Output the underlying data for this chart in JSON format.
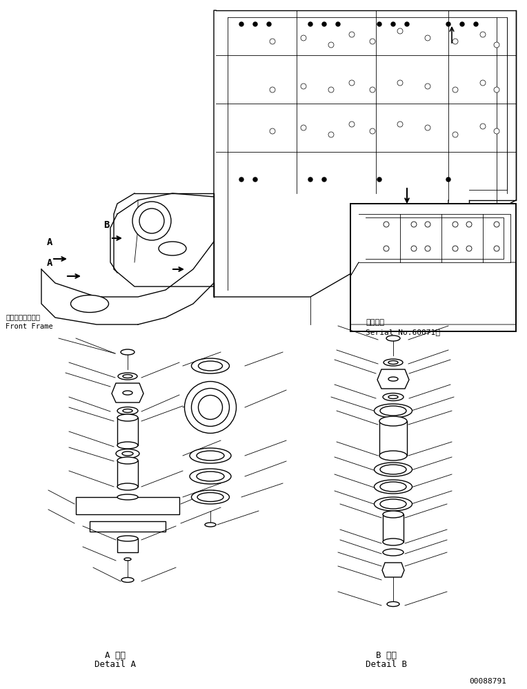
{
  "bg_color": "#ffffff",
  "line_color": "#000000",
  "fig_width": 7.64,
  "fig_height": 9.98,
  "dpi": 100,
  "part_number": "00088791",
  "serial_label_jp": "適用号機",
  "serial_label_en": "Serial No.60071～",
  "front_frame_jp": "フロントフレーム",
  "front_frame_en": "Front Frame",
  "detail_a_jp": "A 詳細",
  "detail_a_en": "Detail A",
  "detail_b_jp": "B 詳細",
  "detail_b_en": "Detail B"
}
